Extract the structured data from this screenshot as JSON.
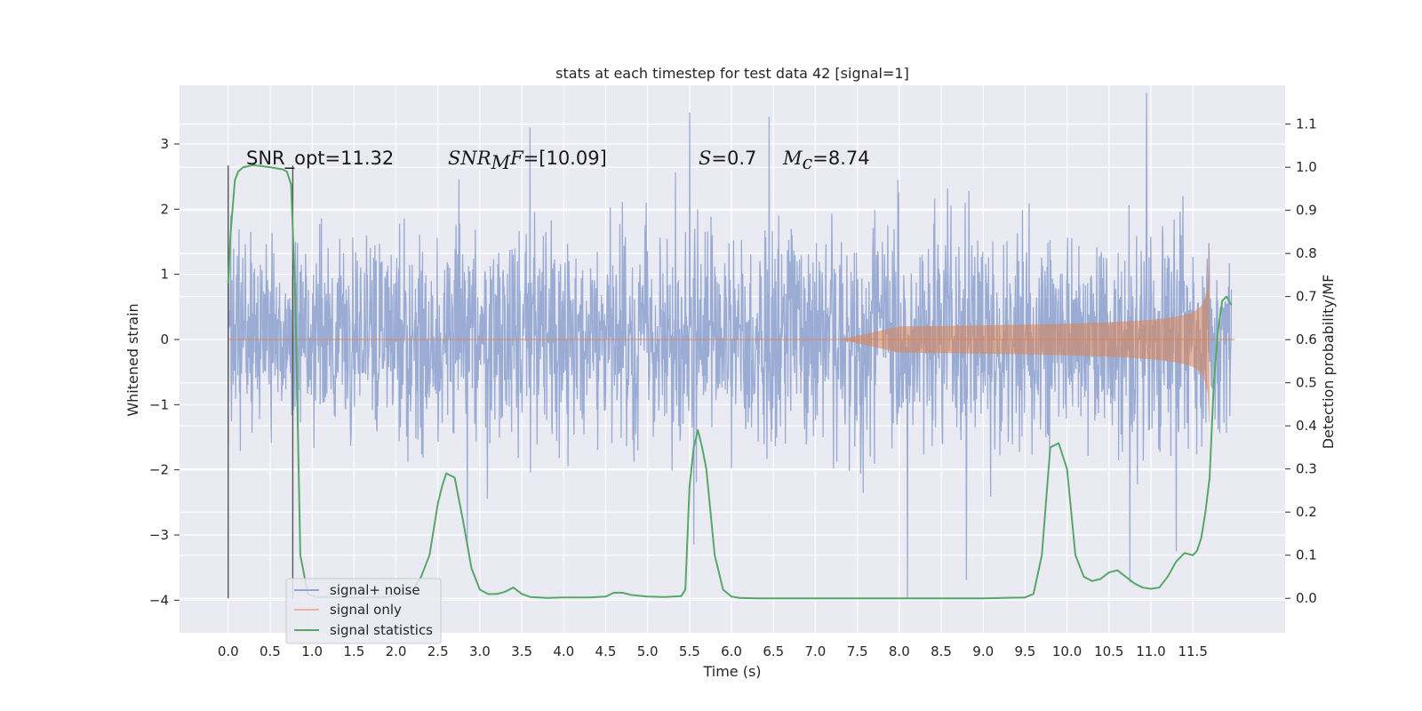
{
  "chart_data": {
    "type": "line",
    "title": "stats at each timestep for test data 42 [signal=1]",
    "xlabel": "Time (s)",
    "ylabel": "Whitened strain",
    "y2label": "Detection probability/MF",
    "xlim": [
      -0.58,
      12.6
    ],
    "ylim": [
      -4.5,
      3.9
    ],
    "y2lim": [
      -0.08,
      1.19
    ],
    "x_ticks": [
      "0.0",
      "0.5",
      "1.0",
      "1.5",
      "2.0",
      "2.5",
      "3.0",
      "3.5",
      "4.0",
      "4.5",
      "5.0",
      "5.5",
      "6.0",
      "6.5",
      "7.0",
      "7.5",
      "8.0",
      "8.5",
      "9.0",
      "9.5",
      "10.0",
      "10.5",
      "11.0",
      "11.5"
    ],
    "x_tick_values": [
      0,
      0.5,
      1,
      1.5,
      2,
      2.5,
      3,
      3.5,
      4,
      4.5,
      5,
      5.5,
      6,
      6.5,
      7,
      7.5,
      8,
      8.5,
      9,
      9.5,
      10,
      10.5,
      11,
      11.5
    ],
    "y_ticks": [
      "−4",
      "−3",
      "−2",
      "−1",
      "0",
      "1",
      "2",
      "3"
    ],
    "y_tick_values": [
      -4,
      -3,
      -2,
      -1,
      0,
      1,
      2,
      3
    ],
    "y2_ticks": [
      "0.0",
      "0.1",
      "0.2",
      "0.3",
      "0.4",
      "0.5",
      "0.6",
      "0.7",
      "0.8",
      "0.9",
      "1.0",
      "1.1"
    ],
    "y2_tick_values": [
      0,
      0.1,
      0.2,
      0.3,
      0.4,
      0.5,
      0.6,
      0.7,
      0.8,
      0.9,
      1.0,
      1.1
    ],
    "grid": true,
    "legend_position": "lower-left",
    "annotations": {
      "snr_opt": "SNR_opt=11.32",
      "snr_mf_sym": "SNR",
      "snr_mf_sub": "M",
      "snr_mf_tail": "F",
      "snr_mf_val": "=[10.09]",
      "s_sym": "S",
      "s_val": "=0.7",
      "mc_sym": "M",
      "mc_sub": "c",
      "mc_val": "=8.74"
    },
    "vertical_markers": [
      0.0,
      0.77
    ],
    "series": [
      {
        "name": "signal+ noise",
        "color": "#92a6d1",
        "t_range": [
          0,
          12
        ],
        "envelope": {
          "typical_abs": 2.3,
          "extremes": [
            [
              0.03,
              1.9
            ],
            [
              2.75,
              2.45
            ],
            [
              3.6,
              3.1
            ],
            [
              5.5,
              3.5
            ],
            [
              6.45,
              3.4
            ],
            [
              8.1,
              -4.1
            ],
            [
              8.8,
              -3.9
            ],
            [
              10.75,
              -3.6
            ],
            [
              10.95,
              3.5
            ],
            [
              11.3,
              -3.3
            ],
            [
              5.55,
              -3.3
            ],
            [
              2.85,
              -3.3
            ]
          ]
        }
      },
      {
        "name": "signal only",
        "color": "#dd8452",
        "t_range": [
          0,
          12
        ],
        "chirp": {
          "visible_from": 7.3,
          "merger_time": 11.68,
          "peak": 1.5,
          "amp_at_11": 0.3,
          "amp_at_9": 0.1
        }
      },
      {
        "name": "signal statistics",
        "color": "#55a868",
        "axis": "right",
        "x": [
          0.0,
          0.03,
          0.08,
          0.12,
          0.18,
          0.3,
          0.5,
          0.65,
          0.7,
          0.75,
          0.8,
          0.86,
          0.95,
          1.05,
          1.2,
          1.5,
          1.8,
          2.0,
          2.1,
          2.2,
          2.3,
          2.4,
          2.5,
          2.55,
          2.6,
          2.7,
          2.8,
          2.9,
          3.0,
          3.1,
          3.2,
          3.3,
          3.4,
          3.5,
          3.6,
          3.8,
          4.0,
          4.3,
          4.5,
          4.6,
          4.7,
          4.8,
          5.0,
          5.2,
          5.4,
          5.45,
          5.5,
          5.55,
          5.6,
          5.65,
          5.7,
          5.8,
          5.9,
          6.0,
          6.1,
          6.3,
          7.0,
          8.0,
          9.0,
          9.5,
          9.6,
          9.7,
          9.8,
          9.9,
          10.0,
          10.1,
          10.2,
          10.3,
          10.4,
          10.5,
          10.6,
          10.7,
          10.8,
          10.9,
          11.0,
          11.1,
          11.2,
          11.3,
          11.4,
          11.5,
          11.55,
          11.6,
          11.65,
          11.7,
          11.75,
          11.8,
          11.85,
          11.9,
          11.96
        ],
        "values": [
          0.73,
          0.85,
          0.97,
          0.99,
          1.0,
          1.005,
          1.0,
          0.995,
          0.99,
          0.96,
          0.7,
          0.1,
          0.01,
          0.003,
          0.003,
          0.002,
          0.002,
          0.006,
          0.01,
          0.02,
          0.05,
          0.1,
          0.22,
          0.26,
          0.29,
          0.28,
          0.18,
          0.07,
          0.02,
          0.01,
          0.01,
          0.015,
          0.025,
          0.01,
          0.003,
          0.001,
          0.002,
          0.002,
          0.004,
          0.013,
          0.013,
          0.008,
          0.004,
          0.003,
          0.005,
          0.02,
          0.26,
          0.35,
          0.39,
          0.35,
          0.3,
          0.1,
          0.02,
          0.004,
          0.001,
          0.0,
          0.0,
          0.0,
          0.0,
          0.002,
          0.01,
          0.1,
          0.35,
          0.36,
          0.3,
          0.1,
          0.05,
          0.04,
          0.045,
          0.06,
          0.065,
          0.05,
          0.035,
          0.025,
          0.022,
          0.025,
          0.05,
          0.085,
          0.105,
          0.1,
          0.11,
          0.14,
          0.2,
          0.28,
          0.5,
          0.62,
          0.69,
          0.7,
          0.68
        ]
      }
    ]
  }
}
